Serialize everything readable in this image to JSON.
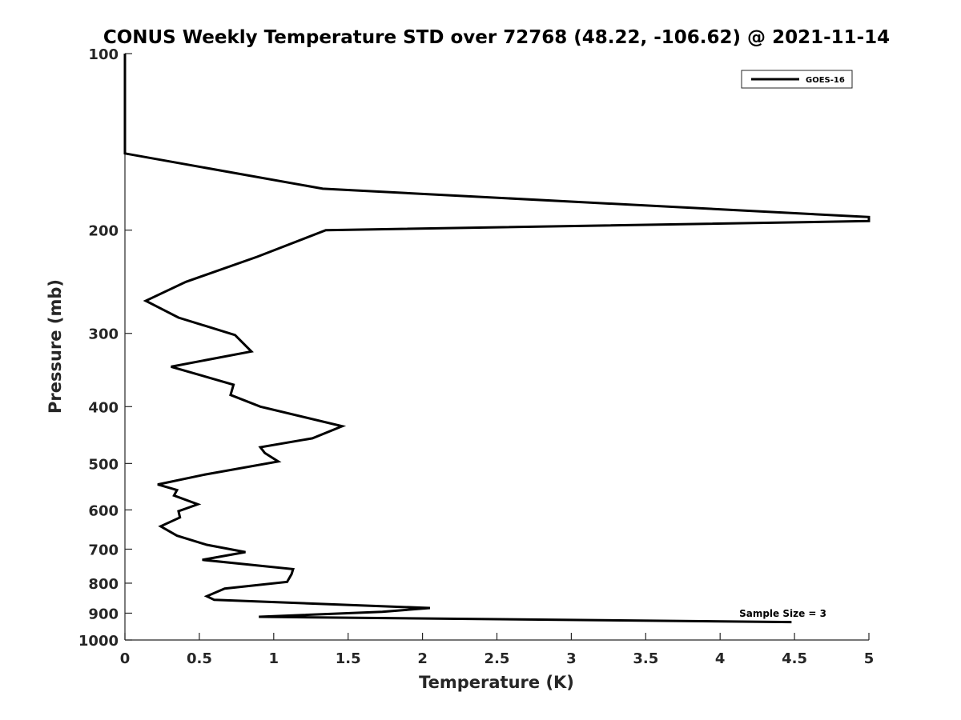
{
  "chart_data": {
    "type": "line",
    "title": "CONUS Weekly Temperature STD over 72768 (48.22, -106.62) @ 2021-11-14",
    "xlabel": "Temperature (K)",
    "ylabel": "Pressure (mb)",
    "xlim": [
      0,
      5
    ],
    "ylim": [
      100,
      1000
    ],
    "y_scale": "log",
    "y_reversed": true,
    "x_ticks": [
      "0",
      "0.5",
      "1",
      "1.5",
      "2",
      "2.5",
      "3",
      "3.5",
      "4",
      "4.5",
      "5"
    ],
    "y_ticks": [
      "100",
      "200",
      "300",
      "400",
      "500",
      "600",
      "700",
      "800",
      "900",
      "1000"
    ],
    "grid": false,
    "legend_position": "top-right",
    "annotation": "Sample Size = 3",
    "series": [
      {
        "name": "GOES-16",
        "color": "#000000",
        "x": [
          0,
          0,
          1.33,
          5,
          5,
          1.35,
          0.89,
          0.41,
          0.14,
          0.36,
          0.74,
          0.85,
          0.31,
          0.73,
          0.71,
          0.91,
          1.46,
          1.26,
          0.91,
          0.94,
          1.03,
          0.54,
          0.22,
          0.35,
          0.33,
          0.49,
          0.36,
          0.37,
          0.24,
          0.35,
          0.55,
          0.81,
          0.52,
          1.13,
          1.12,
          1.09,
          0.67,
          0.55,
          0.6,
          2.05,
          1.73,
          0.9,
          4.48
        ],
        "y": [
          100,
          148,
          170,
          190,
          193,
          200,
          222,
          245,
          264,
          282,
          302,
          322,
          342,
          367,
          382,
          400,
          432,
          453,
          469,
          480,
          496,
          522,
          543,
          555,
          567,
          587,
          603,
          618,
          640,
          664,
          688,
          708,
          730,
          757,
          772,
          796,
          817,
          842,
          854,
          882,
          895,
          913,
          932
        ]
      }
    ]
  }
}
